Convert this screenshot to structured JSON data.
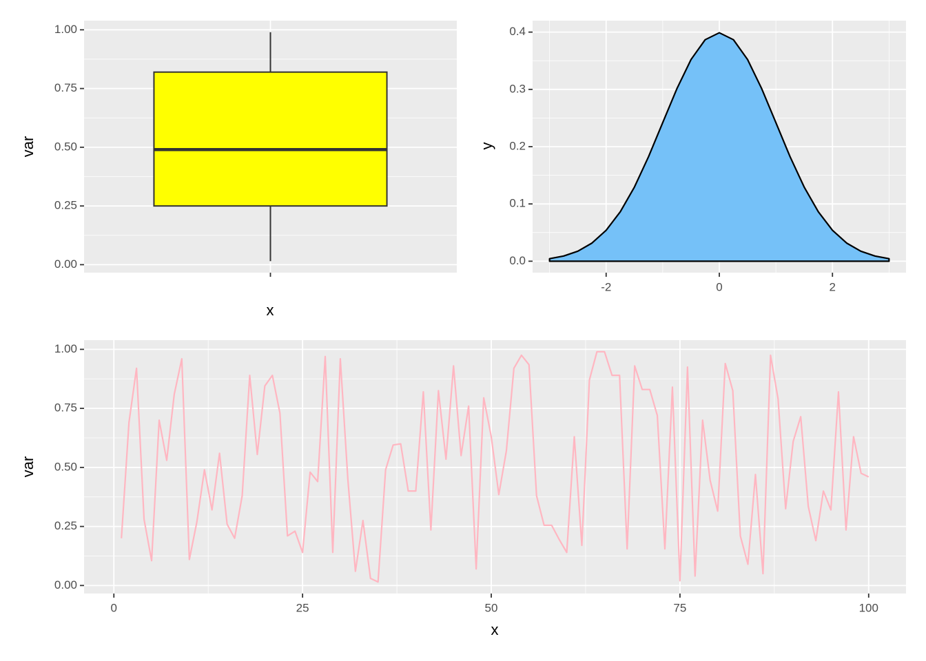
{
  "chart_data": [
    {
      "type": "box",
      "x_label": "x",
      "y_label": "var",
      "categories": [
        null
      ],
      "boxes": [
        {
          "min": 0.015,
          "q1": 0.25,
          "median": 0.49,
          "q3": 0.82,
          "max": 0.99
        }
      ],
      "color": "#ffff00",
      "ylim": [
        -0.034,
        1.039
      ],
      "yticks": [
        {
          "value": 0,
          "label": "0.00"
        },
        0.25,
        {
          "value": 0.5,
          "label": "0.50"
        },
        0.75,
        {
          "value": 1,
          "label": "1.00"
        }
      ],
      "grid": true,
      "minor_grid": true
    },
    {
      "type": "area",
      "y_label": "y",
      "x": [
        -3,
        -2.75,
        -2.5,
        -2.25,
        -2,
        -1.75,
        -1.5,
        -1.25,
        -1,
        -0.75,
        -0.5,
        -0.25,
        0,
        0.25,
        0.5,
        0.75,
        1,
        1.25,
        1.5,
        1.75,
        2,
        2.25,
        2.5,
        2.75,
        3
      ],
      "values": [
        0.0044,
        0.0091,
        0.0175,
        0.0317,
        0.054,
        0.0863,
        0.1295,
        0.1826,
        0.242,
        0.3011,
        0.3521,
        0.3867,
        0.3989,
        0.3867,
        0.3521,
        0.3011,
        0.242,
        0.1826,
        0.1295,
        0.0863,
        0.054,
        0.0317,
        0.0175,
        0.0091,
        0.0044
      ],
      "color": "#75c1f8",
      "xlim": [
        -3.3,
        3.3
      ],
      "xticks": [
        -2,
        0,
        2
      ],
      "ylim": [
        -0.02,
        0.42
      ],
      "yticks": [
        {
          "value": 0,
          "label": "0.0"
        },
        0.1,
        0.2,
        0.3,
        0.4
      ],
      "grid": true,
      "minor_grid": true
    },
    {
      "type": "line",
      "x_label": "x",
      "y_label": "var",
      "x": [
        1,
        2,
        3,
        4,
        5,
        6,
        7,
        8,
        9,
        10,
        11,
        12,
        13,
        14,
        15,
        16,
        17,
        18,
        19,
        20,
        21,
        22,
        23,
        24,
        25,
        26,
        27,
        28,
        29,
        30,
        31,
        32,
        33,
        34,
        35,
        36,
        37,
        38,
        39,
        40,
        41,
        42,
        43,
        44,
        45,
        46,
        47,
        48,
        49,
        50,
        51,
        52,
        53,
        54,
        55,
        56,
        57,
        58,
        59,
        60,
        61,
        62,
        63,
        64,
        65,
        66,
        67,
        68,
        69,
        70,
        71,
        72,
        73,
        74,
        75,
        76,
        77,
        78,
        79,
        80,
        81,
        82,
        83,
        84,
        85,
        86,
        87,
        88,
        89,
        90,
        91,
        92,
        93,
        94,
        95,
        96,
        97,
        98,
        99,
        100
      ],
      "values": [
        0.2,
        0.69,
        0.92,
        0.28,
        0.105,
        0.7,
        0.53,
        0.81,
        0.96,
        0.11,
        0.27,
        0.49,
        0.32,
        0.56,
        0.26,
        0.2,
        0.38,
        0.89,
        0.555,
        0.845,
        0.89,
        0.73,
        0.21,
        0.23,
        0.14,
        0.48,
        0.44,
        0.97,
        0.14,
        0.96,
        0.45,
        0.06,
        0.275,
        0.03,
        0.015,
        0.49,
        0.595,
        0.6,
        0.4,
        0.4,
        0.82,
        0.235,
        0.825,
        0.535,
        0.93,
        0.55,
        0.76,
        0.07,
        0.795,
        0.63,
        0.385,
        0.57,
        0.92,
        0.975,
        0.935,
        0.38,
        0.255,
        0.255,
        0.195,
        0.14,
        0.63,
        0.17,
        0.87,
        0.99,
        0.99,
        0.89,
        0.89,
        0.155,
        0.93,
        0.83,
        0.83,
        0.72,
        0.155,
        0.84,
        0.02,
        0.925,
        0.04,
        0.7,
        0.445,
        0.315,
        0.94,
        0.825,
        0.21,
        0.09,
        0.47,
        0.05,
        0.975,
        0.79,
        0.325,
        0.61,
        0.715,
        0.335,
        0.19,
        0.4,
        0.32,
        0.82,
        0.235,
        0.63,
        0.475,
        0.46
      ],
      "color": "#ffb6c1",
      "xlim": [
        -3.95,
        104.95
      ],
      "xticks": [
        0,
        25,
        50,
        75,
        100
      ],
      "ylim": [
        -0.034,
        1.039
      ],
      "yticks": [
        {
          "value": 0,
          "label": "0.00"
        },
        0.25,
        {
          "value": 0.5,
          "label": "0.50"
        },
        0.75,
        {
          "value": 1,
          "label": "1.00"
        }
      ],
      "grid": true,
      "minor_grid": true
    }
  ]
}
